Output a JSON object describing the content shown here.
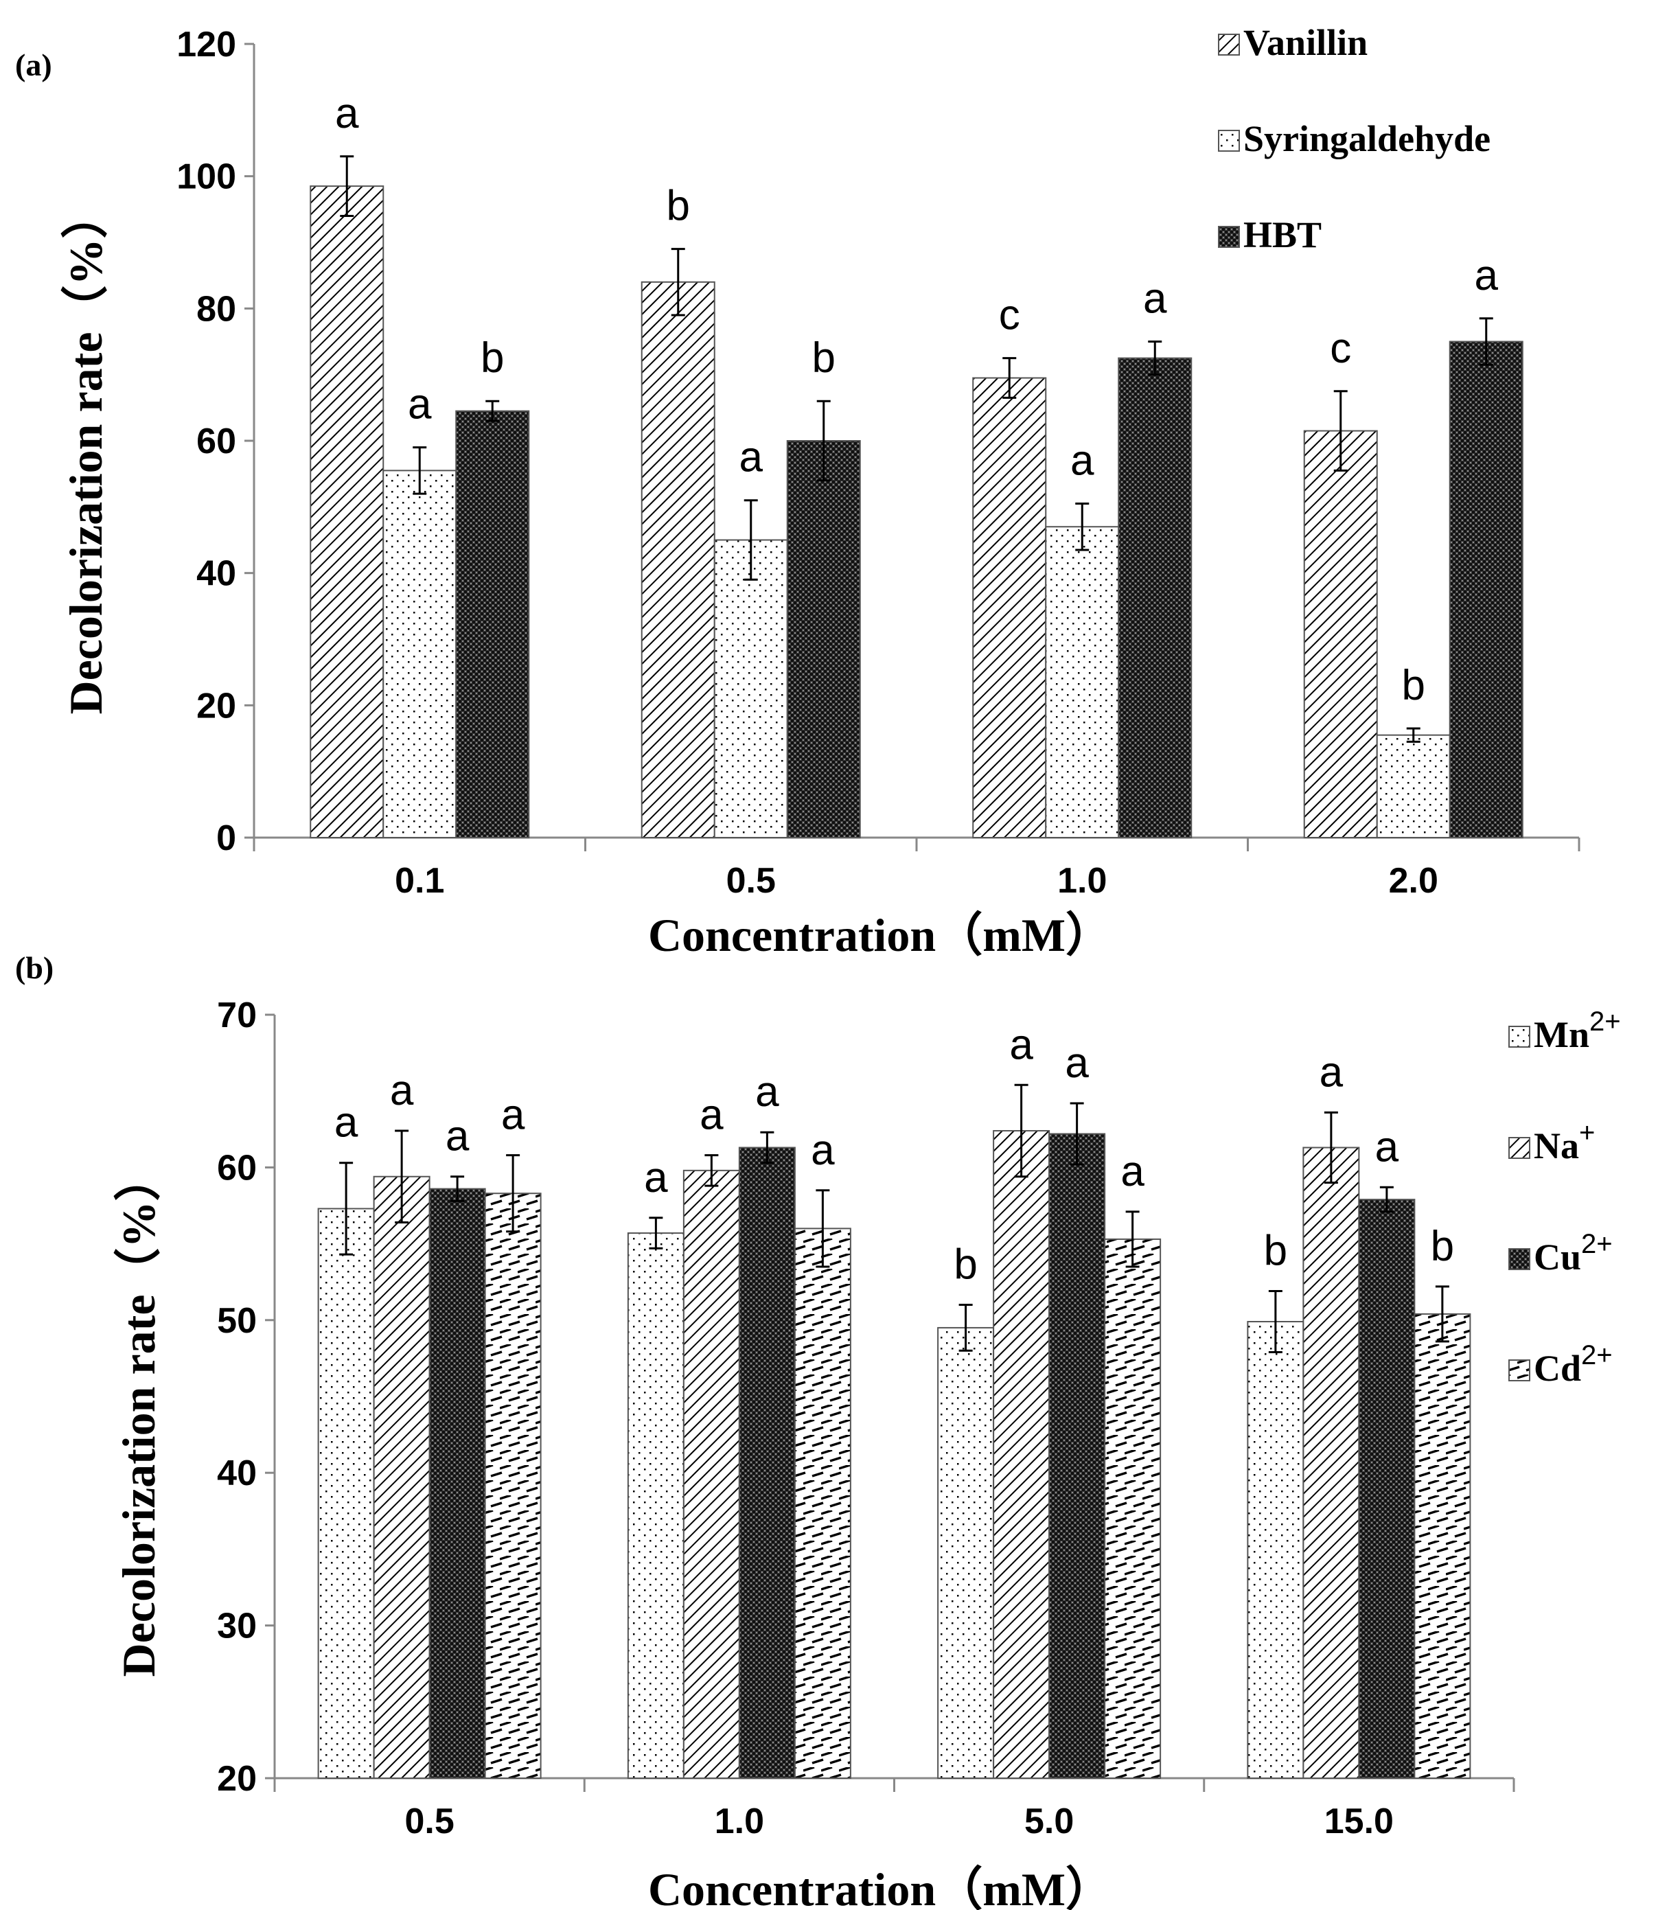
{
  "chart_data": [
    {
      "panel_label": "(a)",
      "type": "bar",
      "title": "",
      "xlabel": "Concentration（mM）",
      "ylabel": "Decolorization rate（%）",
      "ylim": [
        0,
        120
      ],
      "yticks": [
        0,
        20,
        40,
        60,
        80,
        100,
        120
      ],
      "grid": false,
      "legend_position": "top-right",
      "categories": [
        "0.1",
        "0.5",
        "1.0",
        "2.0"
      ],
      "series": [
        {
          "name": "Vanillin",
          "pattern": "diagonal",
          "values": [
            98.5,
            84,
            69.5,
            61.5
          ],
          "errors": [
            4.5,
            5,
            3,
            6
          ],
          "letters": [
            "a",
            "b",
            "c",
            "c"
          ]
        },
        {
          "name": "Syringaldehyde",
          "pattern": "dots",
          "values": [
            55.5,
            45,
            47,
            15.5
          ],
          "errors": [
            3.5,
            6,
            3.5,
            1
          ],
          "letters": [
            "a",
            "a",
            "a",
            "b"
          ]
        },
        {
          "name": "HBT",
          "pattern": "crosshatch",
          "values": [
            64.5,
            60,
            72.5,
            75
          ],
          "errors": [
            1.5,
            6,
            2.5,
            3.5
          ],
          "letters": [
            "b",
            "b",
            "a",
            "a"
          ]
        }
      ]
    },
    {
      "panel_label": "(b)",
      "type": "bar",
      "title": "",
      "xlabel": "Concentration（mM）",
      "ylabel": "Decolorization rate（%）",
      "ylim": [
        20,
        70
      ],
      "yticks": [
        20,
        30,
        40,
        50,
        60,
        70
      ],
      "grid": false,
      "legend_position": "top-right",
      "categories": [
        "0.5",
        "1.0",
        "5.0",
        "15.0"
      ],
      "series": [
        {
          "name": "Mn",
          "superscript": "2+",
          "pattern": "dots",
          "values": [
            57.3,
            55.7,
            49.5,
            49.9
          ],
          "errors": [
            3,
            1,
            1.5,
            2
          ],
          "letters": [
            "a",
            "a",
            "b",
            "b"
          ]
        },
        {
          "name": "Na",
          "superscript": "+",
          "pattern": "diagonal",
          "values": [
            59.4,
            59.8,
            62.4,
            61.3
          ],
          "errors": [
            3,
            1,
            3,
            2.3
          ],
          "letters": [
            "a",
            "a",
            "a",
            "a"
          ]
        },
        {
          "name": "Cu",
          "superscript": "2+",
          "pattern": "crosshatch",
          "values": [
            58.6,
            61.3,
            62.2,
            57.9
          ],
          "errors": [
            0.8,
            1,
            2,
            0.8
          ],
          "letters": [
            "a",
            "a",
            "a",
            "a"
          ]
        },
        {
          "name": "Cd",
          "superscript": "2+",
          "pattern": "horizontal-dash",
          "values": [
            58.3,
            56,
            55.3,
            50.4
          ],
          "errors": [
            2.5,
            2.5,
            1.8,
            1.8
          ],
          "letters": [
            "a",
            "a",
            "a",
            "b"
          ]
        }
      ]
    }
  ]
}
